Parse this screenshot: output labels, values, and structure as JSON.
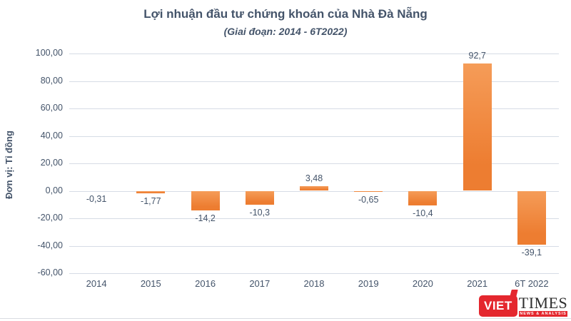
{
  "header": {
    "title": "Lợi nhuận đầu tư chứng khoán của Nhà Đà Nẵng",
    "subtitle": "(Giai đoạn: 2014 - 6T2022)"
  },
  "y_axis_title": "Đơn vị: Tỉ đồng",
  "colors": {
    "text": "#44546A",
    "grid": "#D6DCE5",
    "accent": "#ED7D31",
    "accent_light": "#F59C58",
    "logo_red": "#E4272E"
  },
  "chart_data": {
    "type": "bar",
    "title": "Lợi nhuận đầu tư chứng khoán của Nhà Đà Nẵng",
    "subtitle": "(Giai đoạn: 2014 - 6T2022)",
    "ylabel": "Đơn vị: Tỉ đồng",
    "xlabel": "",
    "categories": [
      "2014",
      "2015",
      "2016",
      "2017",
      "2018",
      "2019",
      "2020",
      "2021",
      "6T 2022"
    ],
    "values": [
      -0.31,
      -1.77,
      -14.2,
      -10.3,
      3.48,
      -0.65,
      -10.4,
      92.7,
      -39.1
    ],
    "value_labels": [
      "-0,31",
      "-1,77",
      "-14,2",
      "-10,3",
      "3,48",
      "-0,65",
      "-10,4",
      "92,7",
      "-39,1"
    ],
    "ylim": [
      -60,
      100
    ],
    "y_tick_values": [
      100,
      80,
      60,
      40,
      20,
      0,
      -20,
      -40,
      -60
    ],
    "y_tick_labels": [
      "100,00",
      "80,00",
      "60,00",
      "40,00",
      "20,00",
      "0,00",
      "-20,00",
      "-40,00",
      "-60,00"
    ],
    "grid": true,
    "legend": "none",
    "bar_color": "#ED7D31"
  },
  "logo": {
    "viet": "VIET",
    "times": "TIMES",
    "tagline": "NEWS & ANALYSIS"
  }
}
